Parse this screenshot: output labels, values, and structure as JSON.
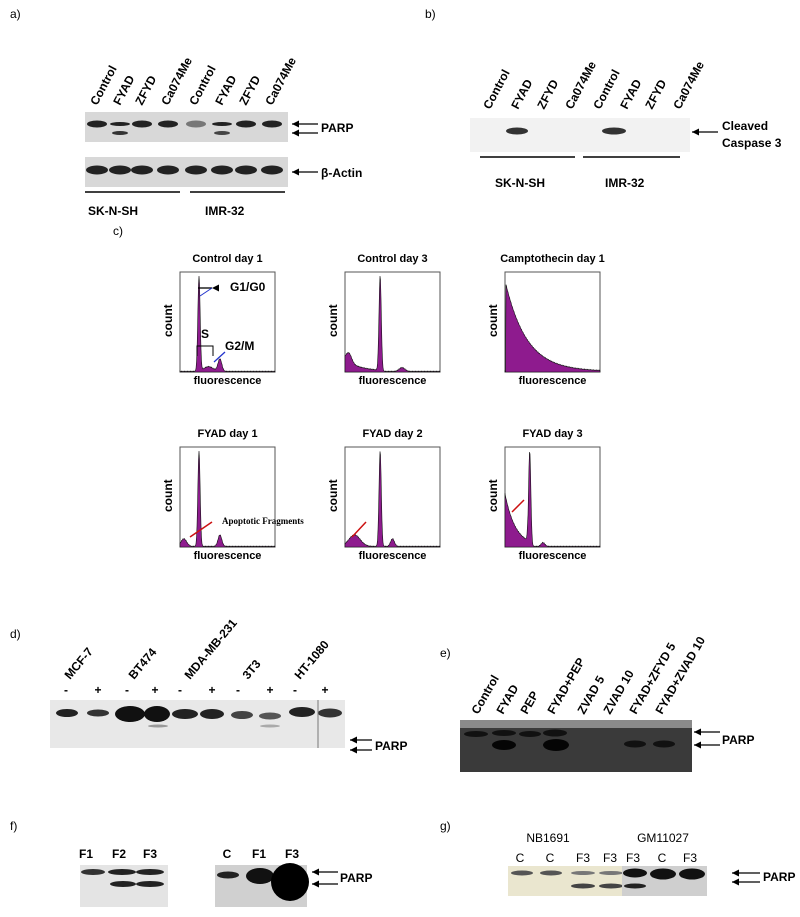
{
  "panel_a": {
    "label": "a)",
    "lanes": [
      "Control",
      "FYAD",
      "ZFYD",
      "Ca074Me",
      "Control",
      "FYAD",
      "ZFYD",
      "Ca074Me"
    ],
    "bands": [
      "PARP",
      "β-Actin"
    ],
    "cell_lines": [
      "SK-N-SH",
      "IMR-32"
    ]
  },
  "panel_b": {
    "label": "b)",
    "lanes": [
      "Control",
      "FYAD",
      "ZFYD",
      "Ca074Me",
      "Control",
      "FYAD",
      "ZFYD",
      "Ca074Me"
    ],
    "band": [
      "Cleaved",
      "Caspase 3"
    ],
    "cell_lines": [
      "SK-N-SH",
      "IMR-32"
    ]
  },
  "panel_c": {
    "label": "c)",
    "y_label": "count",
    "x_label": "fluorescence",
    "plots": [
      "Control day 1",
      "Control day 3",
      "Camptothecin day 1",
      "FYAD day 1",
      "FYAD day 2",
      "FYAD day 3"
    ],
    "annotations": [
      "G1/G0",
      "S",
      "G2/M",
      "Apoptotic Fragments"
    ]
  },
  "panel_d": {
    "label": "d)",
    "cell_lines": [
      "MCF-7",
      "BT474",
      "MDA-MB-231",
      "3T3",
      "HT-1080"
    ],
    "signs": [
      "-",
      "+"
    ],
    "band": "PARP"
  },
  "panel_e": {
    "label": "e)",
    "lanes": [
      "Control",
      "FYAD",
      "PEP",
      "FYAD+PEP",
      "ZVAD 5",
      "ZVAD 10",
      "FYAD+ZFYD 5",
      "FYAD+ZVAD 10"
    ],
    "band": "PARP"
  },
  "panel_f": {
    "label": "f)",
    "lanes_left": [
      "F1",
      "F2",
      "F3"
    ],
    "lanes_right": [
      "C",
      "F1",
      "F3"
    ],
    "band": "PARP"
  },
  "panel_g": {
    "label": "g)",
    "groups": [
      "NB1691",
      "GM11027"
    ],
    "lanes_left": [
      "C",
      "C",
      "F3",
      "F3"
    ],
    "lanes_right": [
      "F3",
      "C",
      "F3"
    ],
    "band": "PARP"
  }
}
